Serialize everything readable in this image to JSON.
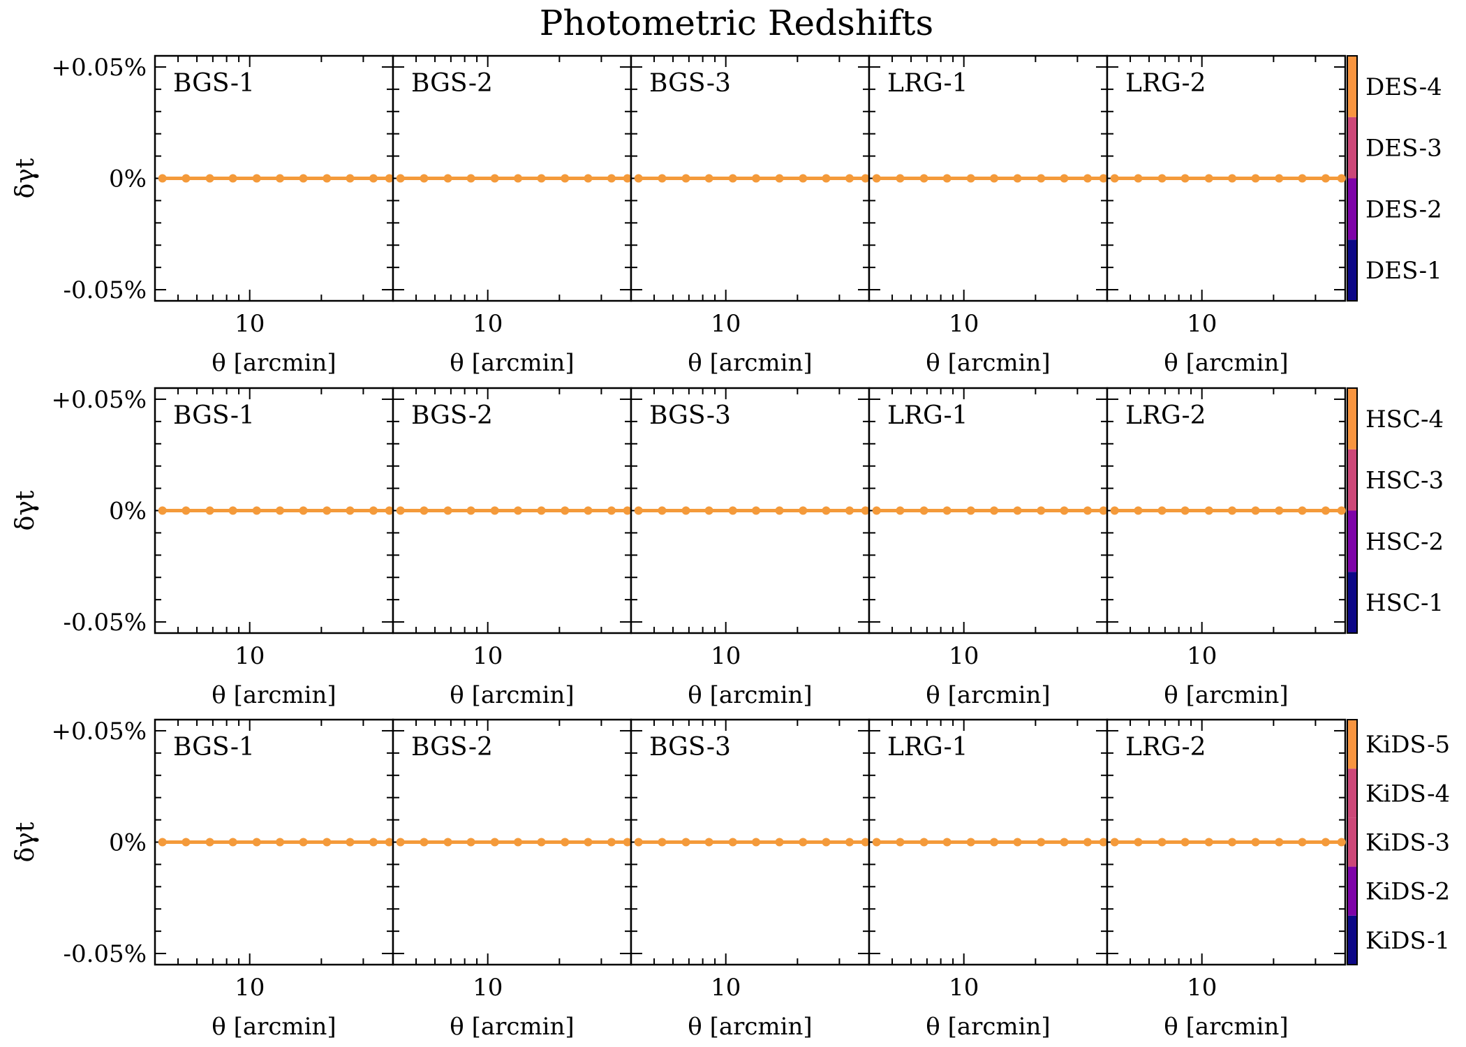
{
  "title": "Photometric Redshifts",
  "colors": {
    "line": "#f49a3a",
    "axes": "#000000",
    "colorbar": [
      "#0d0887",
      "#7e03a8",
      "#cc4778",
      "#f89540"
    ]
  },
  "chart_data": {
    "type": "line",
    "title": "Photometric Redshifts",
    "xlabel": "θ [arcmin]",
    "ylabel": "δγt",
    "x_scale": "log",
    "xlim": [
      4,
      40
    ],
    "ylim": [
      -0.055,
      0.055
    ],
    "y_ticks": [
      {
        "value": 0.05,
        "label": "+0.05%"
      },
      {
        "value": 0,
        "label": "0%"
      },
      {
        "value": -0.05,
        "label": "-0.05%"
      }
    ],
    "x_ticks": [
      {
        "value": 10,
        "label": "10"
      }
    ],
    "theta": [
      4.3,
      5.4,
      6.8,
      8.5,
      10.7,
      13.4,
      16.8,
      21.1,
      26.4,
      33.1,
      38.6
    ],
    "lens_bins": [
      "BGS-1",
      "BGS-2",
      "BGS-3",
      "LRG-1",
      "LRG-2"
    ],
    "rows": [
      {
        "survey": "DES",
        "source_bins": [
          "DES-1",
          "DES-2",
          "DES-3",
          "DES-4"
        ],
        "values": [
          0,
          0,
          0,
          0,
          0,
          0,
          0,
          0,
          0,
          0,
          0
        ]
      },
      {
        "survey": "HSC",
        "source_bins": [
          "HSC-1",
          "HSC-2",
          "HSC-3",
          "HSC-4"
        ],
        "values": [
          0,
          0,
          0,
          0,
          0,
          0,
          0,
          0,
          0,
          0,
          0
        ]
      },
      {
        "survey": "KiDS",
        "source_bins": [
          "KiDS-1",
          "KiDS-2",
          "KiDS-3",
          "KiDS-4",
          "KiDS-5"
        ],
        "values": [
          0,
          0,
          0,
          0,
          0,
          0,
          0,
          0,
          0,
          0,
          0
        ]
      }
    ]
  }
}
